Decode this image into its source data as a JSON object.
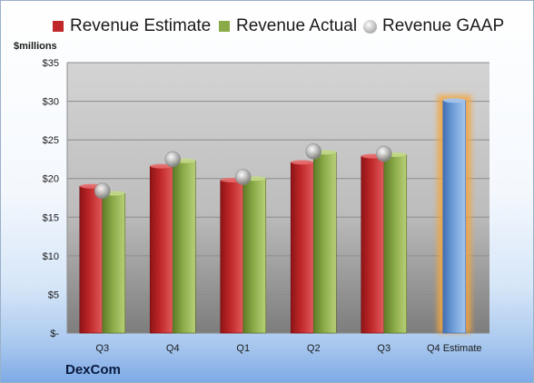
{
  "legend": {
    "estimate_label": "Revenue Estimate",
    "actual_label": "Revenue Actual",
    "gaap_label": "Revenue GAAP"
  },
  "unit_label": "$millions",
  "company": "DexCom",
  "colors": {
    "estimate": "#c0282a",
    "actual": "#8aaa48",
    "gaap": "#b0b0b0",
    "future_estimate": "#6f9ed8",
    "highlight": "#f3a640"
  },
  "chart_data": {
    "type": "bar",
    "categories": [
      "Q3",
      "Q4",
      "Q1",
      "Q2",
      "Q3",
      "Q4 Estimate"
    ],
    "series": [
      {
        "name": "Revenue Estimate",
        "values": [
          19.0,
          21.6,
          19.8,
          22.1,
          22.9,
          30.1
        ]
      },
      {
        "name": "Revenue Actual",
        "values": [
          18.1,
          22.3,
          20.0,
          23.4,
          23.1,
          null
        ]
      },
      {
        "name": "Revenue GAAP",
        "values": [
          18.4,
          22.5,
          20.2,
          23.5,
          23.2,
          null
        ]
      }
    ],
    "y_ticks": [
      "$-",
      "$5",
      "$10",
      "$15",
      "$20",
      "$25",
      "$30",
      "$35"
    ],
    "ylim": [
      0,
      35
    ],
    "grid": true,
    "legend_position": "top"
  }
}
